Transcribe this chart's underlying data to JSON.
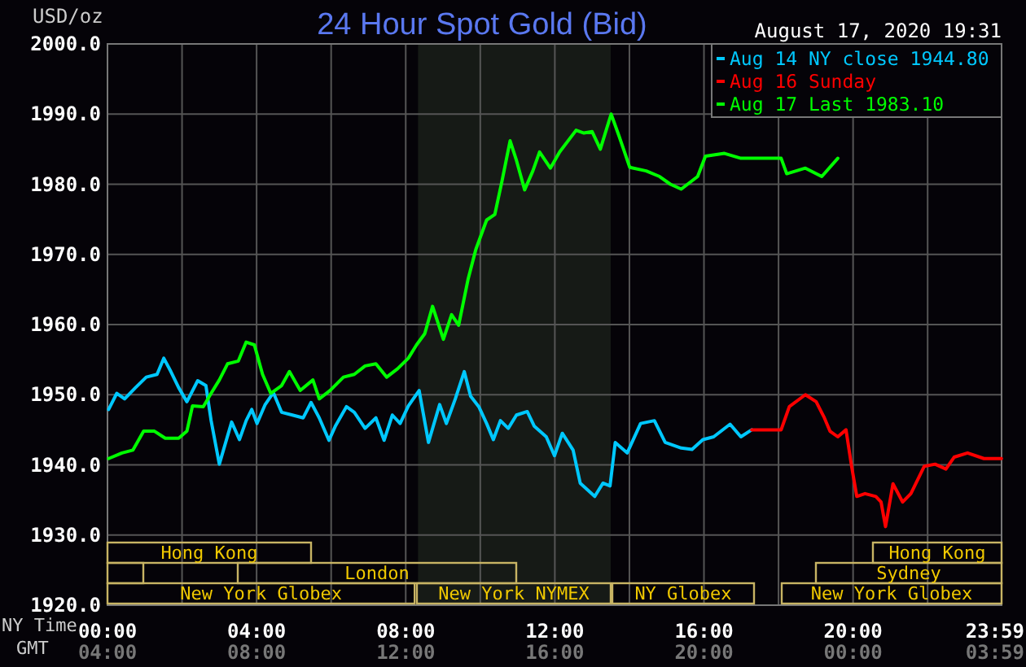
{
  "chart_data": {
    "type": "line",
    "title": "24 Hour Spot Gold (Bid)",
    "subtitle": "August 17, 2020 19:31",
    "ylabel": "USD/oz",
    "xlabel": "NY Time",
    "x2label": "GMT",
    "xlim": [
      0,
      23.983
    ],
    "xticks": [
      {
        "value": 0,
        "label": "00:00"
      },
      {
        "value": 2,
        "label": null
      },
      {
        "value": 4,
        "label": "04:00"
      },
      {
        "value": 6,
        "label": null
      },
      {
        "value": 8,
        "label": "08:00"
      },
      {
        "value": 10,
        "label": null
      },
      {
        "value": 12,
        "label": "12:00"
      },
      {
        "value": 14,
        "label": null
      },
      {
        "value": 16,
        "label": "16:00"
      },
      {
        "value": 18,
        "label": null
      },
      {
        "value": 20,
        "label": "20:00"
      },
      {
        "value": 22,
        "label": null
      },
      {
        "value": 23.983,
        "label": "23:59"
      }
    ],
    "x2lim": [
      "2020-08-17T04:00",
      "2020-08-18T03:59"
    ],
    "x2ticks": [
      {
        "value": "2020-08-17T04:00",
        "label": "04:00"
      },
      {
        "value": "2020-08-17T08:00",
        "label": "08:00"
      },
      {
        "value": "2020-08-17T12:00",
        "label": "12:00"
      },
      {
        "value": "2020-08-17T16:00",
        "label": "16:00"
      },
      {
        "value": "2020-08-17T20:00",
        "label": "20:00"
      },
      {
        "value": "2020-08-18T00:00",
        "label": "00:00"
      },
      {
        "value": "2020-08-18T03:59",
        "label": "03:59"
      }
    ],
    "ylim": [
      1920,
      2000
    ],
    "yticks": [
      {
        "value": 1920,
        "label": "1920.0"
      },
      {
        "value": 1930,
        "label": "1930.0"
      },
      {
        "value": 1940,
        "label": "1940.0"
      },
      {
        "value": 1950,
        "label": "1950.0"
      },
      {
        "value": 1960,
        "label": "1960.0"
      },
      {
        "value": 1970,
        "label": "1970.0"
      },
      {
        "value": 1980,
        "label": "1980.0"
      },
      {
        "value": 1990,
        "label": "1990.0"
      },
      {
        "value": 2000,
        "label": "2000.0"
      }
    ],
    "grid": true,
    "legend": "top right",
    "line_style": "solid",
    "bands": [
      {
        "axis": "x",
        "from": 8.33,
        "to": 13.5,
        "color": "#161a16"
      }
    ],
    "annotations": [
      "New York Globex",
      "New York NYMEX",
      "NY Globex",
      "New York Globex",
      "London",
      "Sydney",
      "Hong Kong",
      "Hong Kong"
    ],
    "series": [
      {
        "name": "Aug 14 NY close 1944.80",
        "color": "#00c8ff",
        "x": [
          0.03,
          0.25,
          0.46,
          0.75,
          1.04,
          1.33,
          1.51,
          1.7,
          1.91,
          2.13,
          2.42,
          2.64,
          2.78,
          3.0,
          3.33,
          3.54,
          3.72,
          3.87,
          4.01,
          4.23,
          4.45,
          4.67,
          4.96,
          5.25,
          5.46,
          5.68,
          5.94,
          6.12,
          6.41,
          6.62,
          6.91,
          7.2,
          7.42,
          7.64,
          7.85,
          8.07,
          8.36,
          8.61,
          8.91,
          9.09,
          9.33,
          9.57,
          9.74,
          9.96,
          10.17,
          10.35,
          10.54,
          10.75,
          10.97,
          11.26,
          11.45,
          11.77,
          11.99,
          12.2,
          12.49,
          12.68,
          13.07,
          13.29,
          13.48,
          13.62,
          13.94,
          14.3,
          14.67,
          14.96,
          15.39,
          15.68,
          15.97,
          16.26,
          16.7,
          16.99,
          17.28
        ],
        "values": [
          1947.9,
          1950.2,
          1949.4,
          1951.0,
          1952.5,
          1952.9,
          1955.2,
          1953.3,
          1951.0,
          1949.0,
          1952.0,
          1951.3,
          1946.3,
          1940.1,
          1946.1,
          1943.6,
          1946.3,
          1947.9,
          1945.9,
          1948.6,
          1950.3,
          1947.5,
          1947.1,
          1946.7,
          1948.9,
          1946.7,
          1943.5,
          1945.6,
          1948.3,
          1947.5,
          1945.2,
          1946.7,
          1943.5,
          1947.1,
          1945.9,
          1948.4,
          1950.6,
          1943.2,
          1948.6,
          1945.9,
          1949.4,
          1953.3,
          1949.8,
          1948.3,
          1945.9,
          1943.6,
          1946.3,
          1945.2,
          1947.1,
          1947.6,
          1945.5,
          1944.0,
          1941.3,
          1944.5,
          1942.1,
          1937.4,
          1935.5,
          1937.4,
          1937.0,
          1943.2,
          1941.7,
          1945.9,
          1946.3,
          1943.2,
          1942.4,
          1942.2,
          1943.6,
          1944.0,
          1945.8,
          1944.0,
          1945.0
        ]
      },
      {
        "name": "Aug 16 Sunday",
        "color": "#ff0000",
        "x": [
          17.28,
          18.07,
          18.29,
          18.72,
          19.01,
          19.23,
          19.38,
          19.59,
          19.81,
          19.96,
          20.1,
          20.32,
          20.61,
          20.75,
          20.87,
          21.07,
          21.33,
          21.55,
          21.91,
          22.2,
          22.49,
          22.71,
          23.07,
          23.51,
          23.98
        ],
        "values": [
          1945.0,
          1945.0,
          1948.3,
          1950.0,
          1949.0,
          1946.7,
          1944.8,
          1944.0,
          1945.0,
          1939.8,
          1935.5,
          1935.9,
          1935.5,
          1934.7,
          1931.2,
          1937.3,
          1934.7,
          1935.9,
          1939.8,
          1940.1,
          1939.4,
          1941.1,
          1941.7,
          1940.9,
          1940.9
        ]
      },
      {
        "name": "Aug 17 Last 1983.10",
        "color": "#00ff00",
        "x": [
          0.03,
          0.39,
          0.68,
          0.97,
          1.26,
          1.55,
          1.91,
          2.13,
          2.28,
          2.57,
          2.78,
          3.0,
          3.22,
          3.51,
          3.72,
          3.94,
          4.16,
          4.38,
          4.67,
          4.88,
          5.17,
          5.51,
          5.68,
          5.97,
          6.33,
          6.62,
          6.91,
          7.2,
          7.49,
          7.78,
          8.07,
          8.29,
          8.51,
          8.72,
          9.01,
          9.23,
          9.42,
          9.67,
          9.88,
          10.17,
          10.39,
          10.58,
          10.8,
          10.97,
          11.19,
          11.41,
          11.59,
          11.88,
          12.13,
          12.57,
          12.78,
          13.0,
          13.22,
          13.51,
          13.72,
          14.01,
          14.45,
          14.81,
          15.1,
          15.39,
          15.83,
          16.04,
          16.55,
          16.99,
          18.07,
          18.22,
          18.72,
          19.16,
          19.59
        ],
        "values": [
          1940.9,
          1941.7,
          1942.1,
          1944.8,
          1944.8,
          1943.8,
          1943.8,
          1944.8,
          1948.4,
          1948.3,
          1950.2,
          1952.1,
          1954.4,
          1954.8,
          1957.5,
          1957.1,
          1952.9,
          1950.2,
          1951.3,
          1953.3,
          1950.6,
          1952.1,
          1949.4,
          1950.6,
          1952.5,
          1952.9,
          1954.1,
          1954.4,
          1952.5,
          1953.7,
          1955.2,
          1957.1,
          1958.7,
          1962.6,
          1957.9,
          1961.4,
          1959.9,
          1966.4,
          1970.7,
          1974.9,
          1975.7,
          1980.4,
          1986.2,
          1983.4,
          1979.2,
          1981.9,
          1984.6,
          1982.3,
          1984.6,
          1987.7,
          1987.3,
          1987.5,
          1985.0,
          1990.0,
          1986.9,
          1982.4,
          1981.9,
          1981.1,
          1980.0,
          1979.3,
          1981.1,
          1984.0,
          1984.4,
          1983.7,
          1983.7,
          1981.5,
          1982.3,
          1981.1,
          1983.7
        ]
      }
    ]
  }
}
